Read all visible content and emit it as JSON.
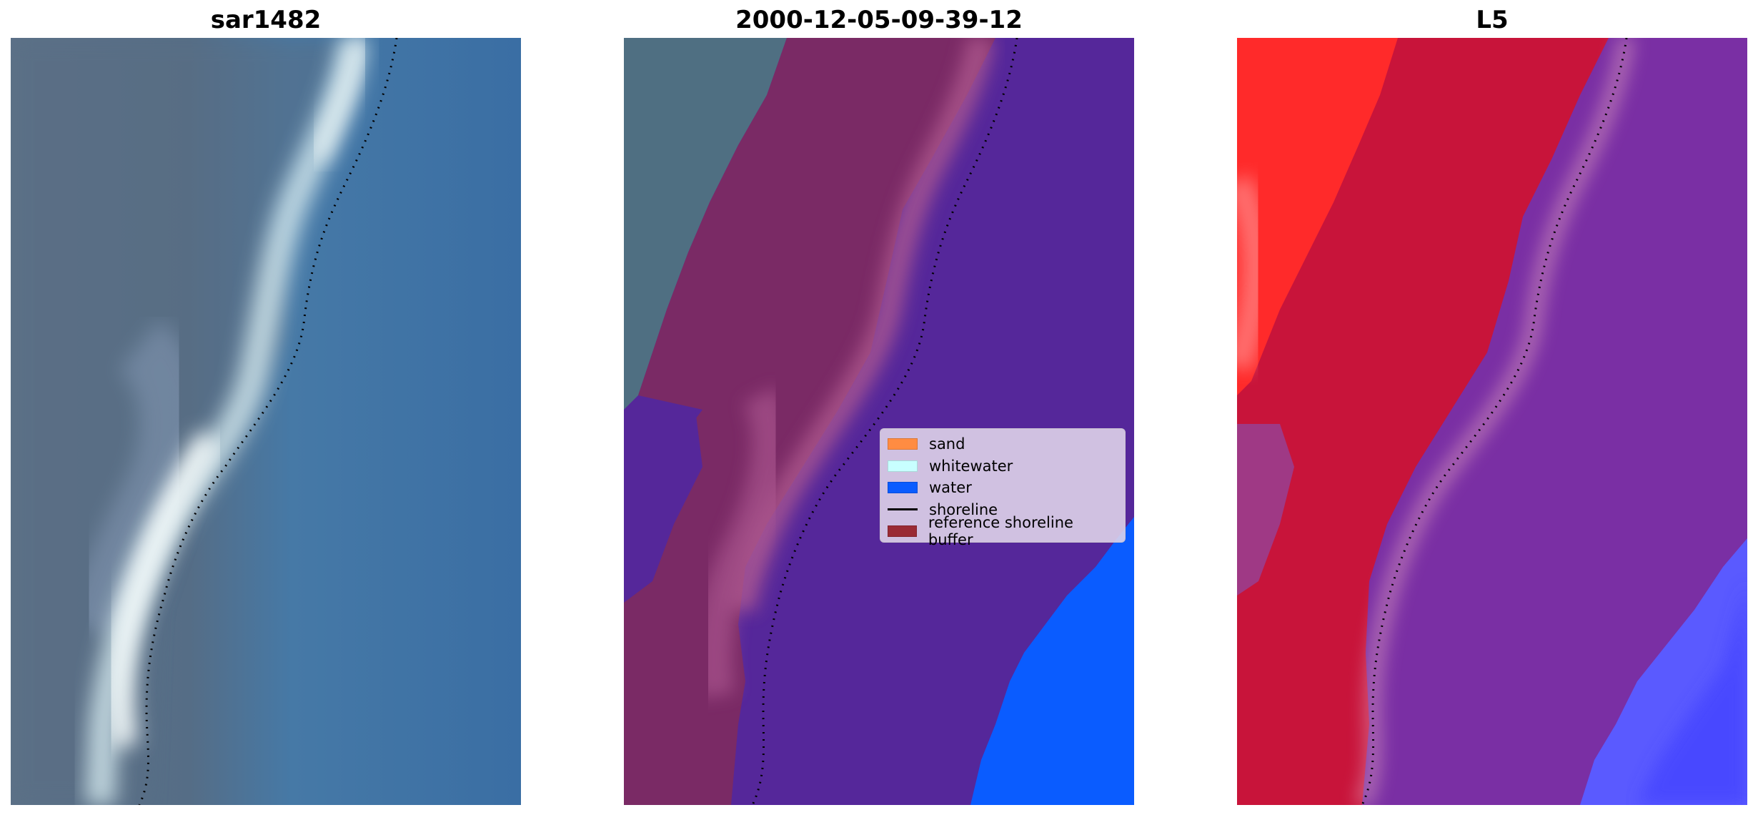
{
  "panels": [
    {
      "title": "sar1482"
    },
    {
      "title": "2000-12-05-09-39-12"
    },
    {
      "title": "L5"
    }
  ],
  "legend": {
    "items": [
      {
        "label": "sand",
        "kind": "patch",
        "color": "#ff8c42"
      },
      {
        "label": "whitewater",
        "kind": "patch",
        "color": "#c8ffff"
      },
      {
        "label": "water",
        "kind": "patch",
        "color": "#0a5cff"
      },
      {
        "label": "shoreline",
        "kind": "line",
        "color": "#000000"
      },
      {
        "label": "reference shoreline buffer",
        "kind": "patch",
        "color": "#9a2b35"
      }
    ]
  },
  "colors": {
    "land_gray": "#5a7288",
    "sea_blue": "#3a7aae",
    "foam": "#e6f2f4",
    "classified_land": "#7a2a65",
    "classified_buffer_light": "#b55a92",
    "classified_water_purple": "#55279a",
    "classified_water": "#0a5cff",
    "l5_red": "#c8143a",
    "l5_bright_red": "#ff2020",
    "l5_purple": "#7a2fa4",
    "l5_blue": "#5a5aff",
    "shoreline": "#000000"
  }
}
